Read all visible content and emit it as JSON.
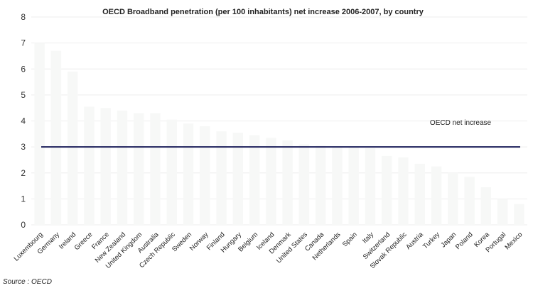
{
  "chart_data": {
    "type": "bar",
    "title": "OECD Broadband penetration (per 100 inhabitants) net increase 2006-2007, by country",
    "xlabel": "",
    "ylabel": "",
    "ylim": [
      0,
      8
    ],
    "yticks": [
      0,
      1,
      2,
      3,
      4,
      5,
      6,
      7,
      8
    ],
    "grid": true,
    "categories": [
      "Luxembourg",
      "Germany",
      "Ireland",
      "Greece",
      "France",
      "New Zealand",
      "United Kingdom",
      "Australia",
      "Czech Republic",
      "Sweden",
      "Norway",
      "Finland",
      "Hungary",
      "Belgium",
      "Iceland",
      "Denmark",
      "United States",
      "Canada",
      "Netherlands",
      "Spain",
      "Italy",
      "Switzerland",
      "Slovak Republic",
      "Austria",
      "Turkey",
      "Japan",
      "Poland",
      "Korea",
      "Portugal",
      "Mexico"
    ],
    "values": [
      7.0,
      6.7,
      5.9,
      4.55,
      4.5,
      4.4,
      4.3,
      4.3,
      4.05,
      3.9,
      3.8,
      3.6,
      3.55,
      3.45,
      3.35,
      3.25,
      3.1,
      3.05,
      3.0,
      3.0,
      2.95,
      2.65,
      2.6,
      2.35,
      2.25,
      2.0,
      1.85,
      1.45,
      1.0,
      0.8
    ],
    "reference_line": {
      "label": "OECD net increase",
      "value": 3.0
    },
    "source": "Source : OECD",
    "colors": {
      "bar": "#f7f8f7",
      "reference_line": "#1c1f5a",
      "grid": "#eeeeee"
    }
  }
}
